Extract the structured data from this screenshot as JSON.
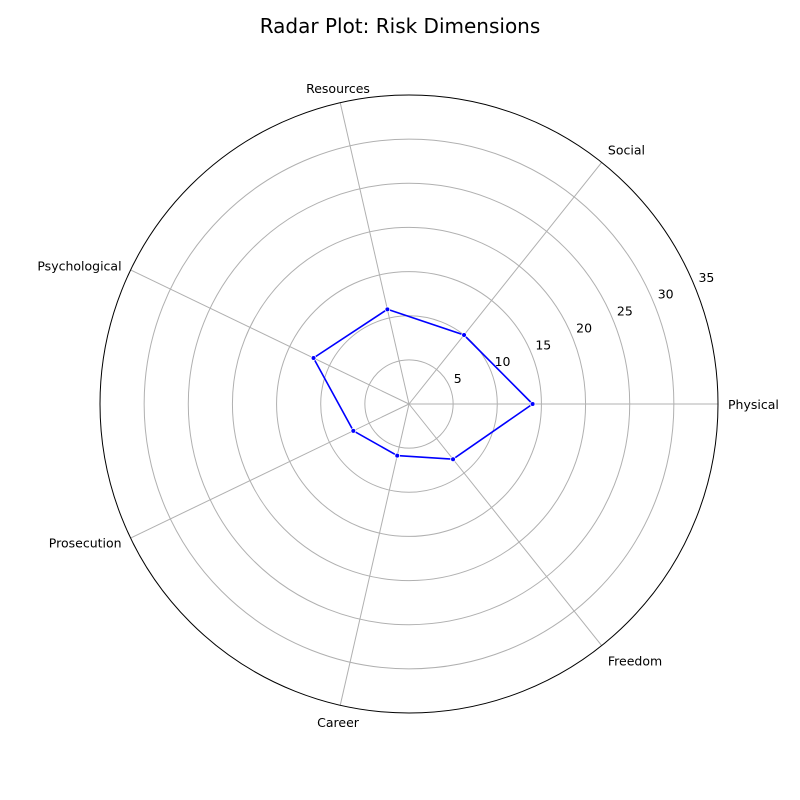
{
  "chart_data": {
    "type": "radar",
    "title": "Radar Plot: Risk Dimensions",
    "categories": [
      "Physical",
      "Social",
      "Resources",
      "Psychological",
      "Prosecution",
      "Career",
      "Freedom"
    ],
    "series": [
      {
        "values": [
          14,
          10,
          11,
          12,
          7,
          6,
          8
        ]
      }
    ],
    "rlim": [
      0,
      35
    ],
    "r_ticks": [
      5,
      10,
      15,
      20,
      25,
      30,
      35
    ],
    "grid": true,
    "line_color": "#0000ff",
    "grid_color": "#b0b0b0"
  }
}
